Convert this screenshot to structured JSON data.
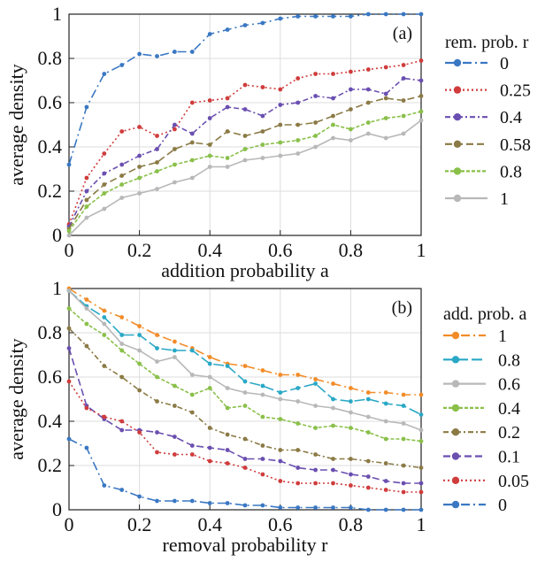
{
  "chart_data": [
    {
      "type": "line",
      "panel_label": "(a)",
      "xlabel": "addition probability a",
      "ylabel": "average density",
      "xlim": [
        0,
        1
      ],
      "ylim": [
        0,
        1
      ],
      "xticks": [
        "0",
        "0.2",
        "0.4",
        "0.6",
        "0.8",
        "1"
      ],
      "yticks": [
        "0",
        "0.2",
        "0.4",
        "0.6",
        "0.8",
        "1"
      ],
      "legend_title": "rem. prob. r",
      "legend_position": "right",
      "grid": true,
      "x": [
        0,
        0.05,
        0.1,
        0.15,
        0.2,
        0.25,
        0.3,
        0.35,
        0.4,
        0.45,
        0.5,
        0.55,
        0.6,
        0.65,
        0.7,
        0.75,
        0.8,
        0.85,
        0.9,
        0.95,
        1.0
      ],
      "series": [
        {
          "name": "0",
          "color": "#3a78c3",
          "dash": "10 4 2 4",
          "values": [
            0.32,
            0.58,
            0.73,
            0.77,
            0.82,
            0.81,
            0.83,
            0.83,
            0.91,
            0.93,
            0.95,
            0.96,
            0.98,
            0.99,
            0.99,
            0.99,
            0.99,
            1.0,
            1.0,
            1.0,
            1.0
          ]
        },
        {
          "name": "0.25",
          "color": "#d03c3c",
          "dash": "2 3",
          "values": [
            0.05,
            0.26,
            0.37,
            0.47,
            0.49,
            0.45,
            0.48,
            0.6,
            0.61,
            0.62,
            0.68,
            0.67,
            0.66,
            0.71,
            0.73,
            0.73,
            0.74,
            0.75,
            0.76,
            0.77,
            0.79
          ]
        },
        {
          "name": "0.4",
          "color": "#6a4fb0",
          "dash": "6 3 2 3",
          "values": [
            0.04,
            0.2,
            0.28,
            0.32,
            0.36,
            0.39,
            0.5,
            0.46,
            0.53,
            0.58,
            0.57,
            0.54,
            0.59,
            0.6,
            0.63,
            0.62,
            0.66,
            0.66,
            0.64,
            0.71,
            0.7
          ]
        },
        {
          "name": "0.58",
          "color": "#8b7a45",
          "dash": "8 4",
          "values": [
            0.03,
            0.16,
            0.23,
            0.27,
            0.31,
            0.33,
            0.39,
            0.42,
            0.41,
            0.47,
            0.45,
            0.47,
            0.5,
            0.5,
            0.51,
            0.54,
            0.57,
            0.6,
            0.62,
            0.61,
            0.63
          ]
        },
        {
          "name": "0.8",
          "color": "#8ac04a",
          "dash": "4 2",
          "values": [
            0.02,
            0.13,
            0.19,
            0.23,
            0.26,
            0.29,
            0.32,
            0.34,
            0.36,
            0.35,
            0.39,
            0.41,
            0.42,
            0.43,
            0.45,
            0.5,
            0.48,
            0.51,
            0.53,
            0.54,
            0.56
          ]
        },
        {
          "name": "1",
          "color": "#b8b8b8",
          "dash": "",
          "values": [
            0.0,
            0.08,
            0.12,
            0.17,
            0.19,
            0.21,
            0.24,
            0.26,
            0.31,
            0.31,
            0.34,
            0.35,
            0.36,
            0.37,
            0.4,
            0.44,
            0.43,
            0.46,
            0.44,
            0.46,
            0.52
          ]
        }
      ]
    },
    {
      "type": "line",
      "panel_label": "(b)",
      "xlabel": "removal probability r",
      "ylabel": "average density",
      "xlim": [
        0,
        1
      ],
      "ylim": [
        0,
        1
      ],
      "xticks": [
        "0",
        "0.2",
        "0.4",
        "0.6",
        "0.8",
        "1"
      ],
      "yticks": [
        "0",
        "0.2",
        "0.4",
        "0.6",
        "0.8",
        "1"
      ],
      "legend_title": "add. prob. a",
      "legend_position": "right",
      "grid": true,
      "x": [
        0,
        0.05,
        0.1,
        0.15,
        0.2,
        0.25,
        0.3,
        0.35,
        0.4,
        0.45,
        0.5,
        0.55,
        0.6,
        0.65,
        0.7,
        0.75,
        0.8,
        0.85,
        0.9,
        0.95,
        1.0
      ],
      "series": [
        {
          "name": "1",
          "color": "#f28c28",
          "dash": "10 4 2 4",
          "values": [
            1.0,
            0.95,
            0.9,
            0.87,
            0.83,
            0.79,
            0.76,
            0.73,
            0.69,
            0.66,
            0.65,
            0.63,
            0.61,
            0.61,
            0.59,
            0.57,
            0.55,
            0.53,
            0.53,
            0.52,
            0.52
          ]
        },
        {
          "name": "0.8",
          "color": "#2aa8c6",
          "dash": "12 4",
          "values": [
            0.99,
            0.92,
            0.87,
            0.79,
            0.79,
            0.73,
            0.72,
            0.72,
            0.66,
            0.65,
            0.58,
            0.56,
            0.53,
            0.55,
            0.57,
            0.5,
            0.49,
            0.5,
            0.48,
            0.47,
            0.43
          ]
        },
        {
          "name": "0.6",
          "color": "#b8b8b8",
          "dash": "",
          "values": [
            0.99,
            0.91,
            0.84,
            0.75,
            0.72,
            0.67,
            0.69,
            0.61,
            0.6,
            0.55,
            0.53,
            0.52,
            0.5,
            0.49,
            0.47,
            0.46,
            0.44,
            0.42,
            0.4,
            0.39,
            0.36
          ]
        },
        {
          "name": "0.4",
          "color": "#8ac04a",
          "dash": "4 2",
          "values": [
            0.91,
            0.84,
            0.79,
            0.72,
            0.66,
            0.6,
            0.56,
            0.52,
            0.55,
            0.46,
            0.47,
            0.42,
            0.41,
            0.39,
            0.37,
            0.38,
            0.37,
            0.35,
            0.32,
            0.32,
            0.31
          ]
        },
        {
          "name": "0.2",
          "color": "#8b7a45",
          "dash": "6 3 2 3",
          "values": [
            0.82,
            0.74,
            0.65,
            0.6,
            0.54,
            0.49,
            0.47,
            0.44,
            0.37,
            0.34,
            0.32,
            0.29,
            0.27,
            0.27,
            0.25,
            0.23,
            0.23,
            0.22,
            0.21,
            0.2,
            0.19
          ]
        },
        {
          "name": "0.1",
          "color": "#6a4fb0",
          "dash": "8 4",
          "values": [
            0.73,
            0.47,
            0.41,
            0.36,
            0.36,
            0.35,
            0.33,
            0.29,
            0.28,
            0.27,
            0.23,
            0.23,
            0.22,
            0.19,
            0.18,
            0.18,
            0.16,
            0.15,
            0.13,
            0.12,
            0.12
          ]
        },
        {
          "name": "0.05",
          "color": "#d03c3c",
          "dash": "2 3",
          "values": [
            0.58,
            0.46,
            0.42,
            0.4,
            0.35,
            0.26,
            0.25,
            0.25,
            0.22,
            0.21,
            0.19,
            0.16,
            0.13,
            0.12,
            0.12,
            0.12,
            0.11,
            0.1,
            0.09,
            0.08,
            0.08
          ]
        },
        {
          "name": "0",
          "color": "#3a78c3",
          "dash": "10 4 2 4",
          "values": [
            0.32,
            0.28,
            0.11,
            0.09,
            0.06,
            0.04,
            0.04,
            0.04,
            0.03,
            0.03,
            0.02,
            0.02,
            0.01,
            0.01,
            0.01,
            0.01,
            0.01,
            0.0,
            0.0,
            0.0,
            0.0
          ]
        }
      ]
    }
  ]
}
